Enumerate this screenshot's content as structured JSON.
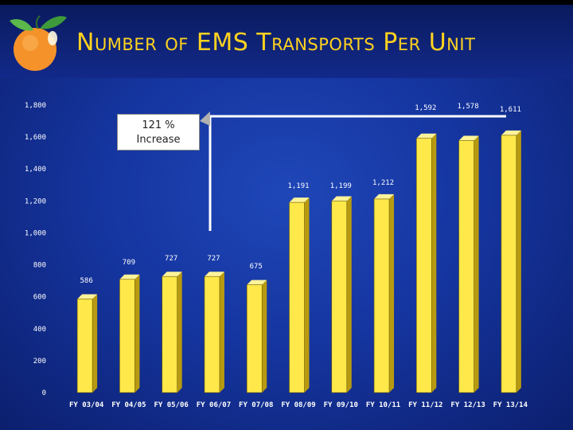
{
  "header": {
    "title": "Number of EMS Transports Per Unit"
  },
  "annotation": {
    "line1": "121 %",
    "line2": "Increase"
  },
  "chart_data": {
    "type": "bar",
    "title": "Number of EMS Transports Per Unit",
    "categories": [
      "FY 03/04",
      "FY 04/05",
      "FY 05/06",
      "FY 06/07",
      "FY 07/08",
      "FY 08/09",
      "FY 09/10",
      "FY 10/11",
      "FY 11/12",
      "FY 12/13",
      "FY 13/14"
    ],
    "values": [
      586,
      709,
      727,
      727,
      675,
      1191,
      1199,
      1212,
      1592,
      1578,
      1611
    ],
    "value_labels": [
      "586",
      "709",
      "727",
      "727",
      "675",
      "1,191",
      "1,199",
      "1,212",
      "1,592",
      "1,578",
      "1,611"
    ],
    "yticks": [
      0,
      200,
      400,
      600,
      800,
      1000,
      1200,
      1400,
      1600,
      1800
    ],
    "ytick_labels": [
      "0",
      "200",
      "400",
      "600",
      "800",
      "1,000",
      "1,200",
      "1,400",
      "1,600",
      "1,800"
    ],
    "ylim": [
      0,
      1800
    ],
    "xlabel": "",
    "ylabel": "",
    "bar_color": "#ffe84a",
    "bar_side_color": "#b89a10",
    "annotation": "121 % Increase"
  }
}
